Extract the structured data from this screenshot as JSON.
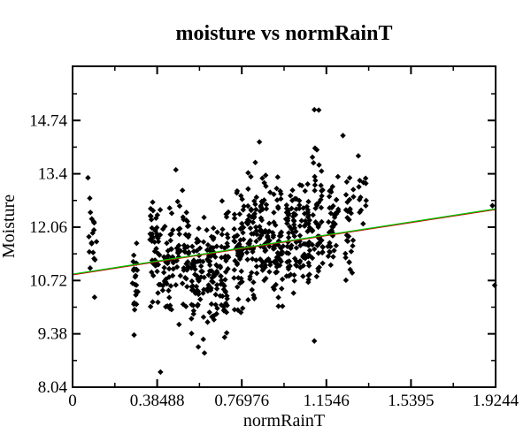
{
  "chart_data": {
    "type": "scatter",
    "title": "moisture vs normRainT",
    "xlabel": "normRainT",
    "ylabel": "Moisture",
    "xlim": [
      0,
      1.9244
    ],
    "ylim": [
      8.04,
      16.1
    ],
    "x_ticks": [
      "0",
      "0.38488",
      "0.76976",
      "1.1546",
      "1.5395",
      "1.9244"
    ],
    "y_ticks": [
      "8.04",
      "9.38",
      "10.72",
      "12.06",
      "13.4",
      "14.74"
    ],
    "grid": false,
    "legend": "none",
    "marker": "diamond",
    "colors": {
      "points": "#000000",
      "fit_line": "#00cc00",
      "fit_line_under": "#cc0000"
    },
    "fit_line": {
      "x": [
        0,
        1.9244
      ],
      "y": [
        10.88,
        12.52
      ]
    },
    "clusters": [
      {
        "x": [
          0.07,
          0.11
        ],
        "y": [
          10.2,
          13.3
        ],
        "n": 16
      },
      {
        "x": [
          0.27,
          0.3
        ],
        "y": [
          9.3,
          12.0
        ],
        "n": 20
      },
      {
        "x": [
          0.35,
          0.4
        ],
        "y": [
          9.6,
          13.3
        ],
        "n": 45
      },
      {
        "x": [
          0.41,
          0.46
        ],
        "y": [
          9.4,
          13.1
        ],
        "n": 45
      },
      {
        "x": [
          0.47,
          0.53
        ],
        "y": [
          9.2,
          13.4
        ],
        "n": 50
      },
      {
        "x": [
          0.54,
          0.6
        ],
        "y": [
          8.7,
          13.1
        ],
        "n": 55
      },
      {
        "x": [
          0.61,
          0.66
        ],
        "y": [
          8.9,
          12.9
        ],
        "n": 55
      },
      {
        "x": [
          0.67,
          0.71
        ],
        "y": [
          9.0,
          13.2
        ],
        "n": 45
      },
      {
        "x": [
          0.73,
          0.78
        ],
        "y": [
          9.4,
          13.7
        ],
        "n": 55
      },
      {
        "x": [
          0.79,
          0.84
        ],
        "y": [
          9.6,
          14.2
        ],
        "n": 55
      },
      {
        "x": [
          0.85,
          0.9
        ],
        "y": [
          9.8,
          13.8
        ],
        "n": 55
      },
      {
        "x": [
          0.91,
          0.96
        ],
        "y": [
          9.5,
          13.6
        ],
        "n": 55
      },
      {
        "x": [
          0.97,
          1.02
        ],
        "y": [
          9.6,
          13.8
        ],
        "n": 55
      },
      {
        "x": [
          1.03,
          1.08
        ],
        "y": [
          9.8,
          13.6
        ],
        "n": 55
      },
      {
        "x": [
          1.09,
          1.14
        ],
        "y": [
          9.2,
          15.0
        ],
        "n": 50
      },
      {
        "x": [
          1.16,
          1.21
        ],
        "y": [
          10.4,
          13.9
        ],
        "n": 40
      },
      {
        "x": [
          1.24,
          1.28
        ],
        "y": [
          9.9,
          14.3
        ],
        "n": 28
      },
      {
        "x": [
          1.3,
          1.34
        ],
        "y": [
          11.6,
          13.8
        ],
        "n": 12
      }
    ],
    "points": [
      [
        0.4,
        8.42
      ],
      [
        1.1,
        15.01
      ],
      [
        1.12,
        15.0
      ],
      [
        1.23,
        14.36
      ],
      [
        0.85,
        14.2
      ],
      [
        1.3,
        13.85
      ],
      [
        0.07,
        13.3
      ],
      [
        1.91,
        12.6
      ],
      [
        1.92,
        10.6
      ],
      [
        0.1,
        10.3
      ],
      [
        0.28,
        9.35
      ],
      [
        0.6,
        8.9
      ],
      [
        1.1,
        9.2
      ],
      [
        0.47,
        13.5
      ]
    ]
  }
}
